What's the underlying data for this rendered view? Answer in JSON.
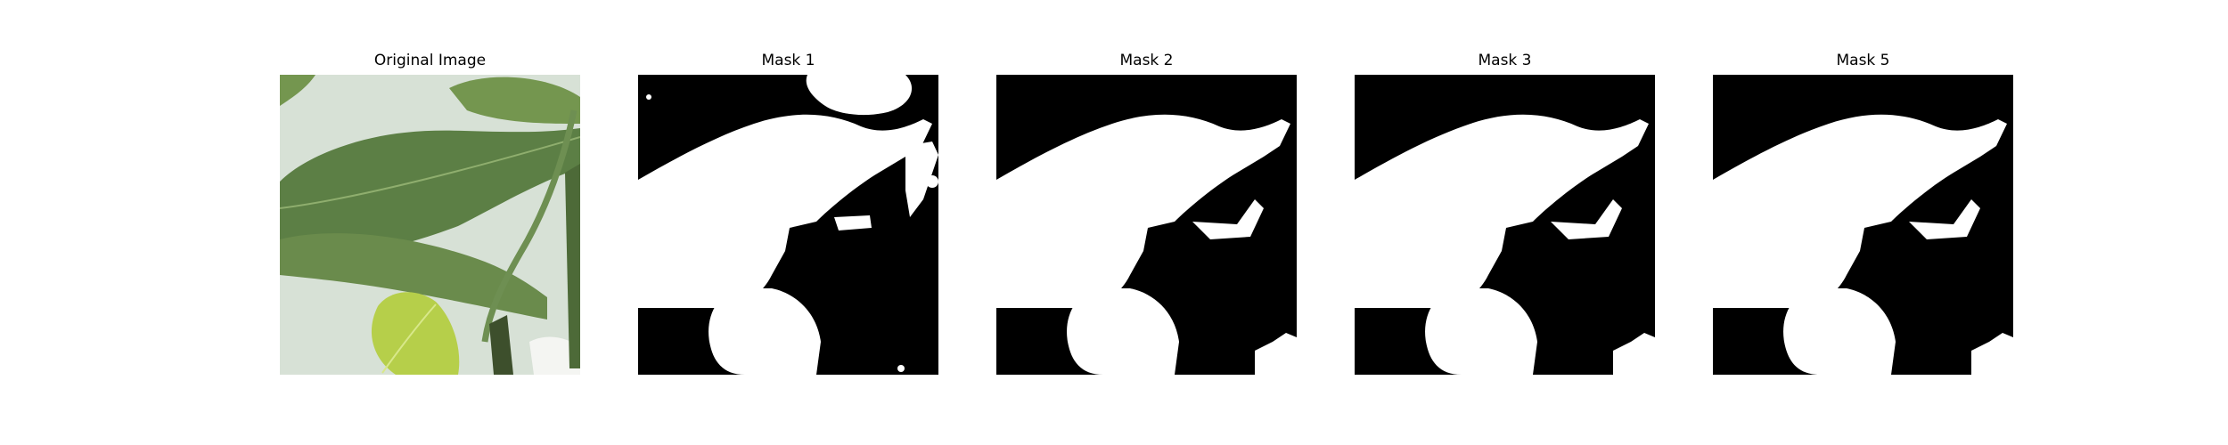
{
  "figure": {
    "panels": [
      {
        "title": "Original Image",
        "kind": "photo"
      },
      {
        "title": "Mask 1",
        "kind": "mask"
      },
      {
        "title": "Mask 2",
        "kind": "mask"
      },
      {
        "title": "Mask 3",
        "kind": "mask"
      },
      {
        "title": "Mask 5",
        "kind": "mask"
      }
    ]
  },
  "colors": {
    "mask_background": "#000000",
    "mask_foreground": "#ffffff",
    "photo_background": "#dfe6de",
    "leaf_dark": "#5c7f45",
    "leaf_mid": "#74964f",
    "leaf_light": "#b6cf4a",
    "stem": "#3d4f2c"
  }
}
